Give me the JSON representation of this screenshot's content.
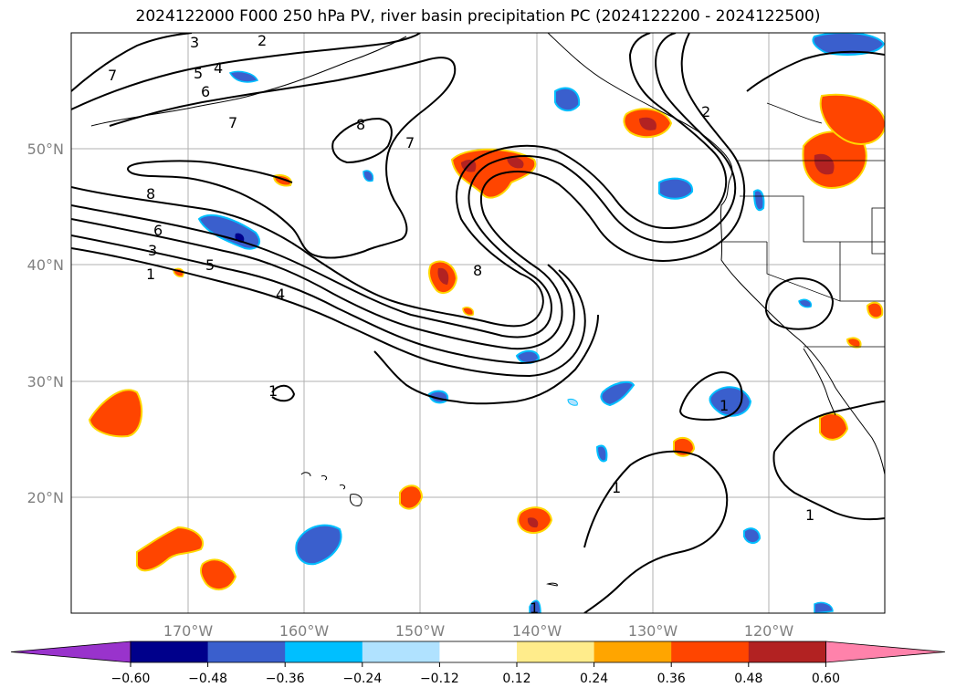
{
  "title": "2024122000 F000 250 hPa PV, river basin precipitation PC (2024122200 - 2024122500)",
  "map": {
    "lon_range": [
      -180,
      -110
    ],
    "lat_range": [
      10,
      60
    ],
    "lat_labels": [
      "20°N",
      "30°N",
      "40°N",
      "50°N"
    ],
    "lon_labels": [
      "170°W",
      "160°W",
      "150°W",
      "140°W",
      "130°W",
      "120°W"
    ],
    "gridlines": true
  },
  "colorbar": {
    "colors": [
      "#9933cc",
      "#00008b",
      "#3a5fcd",
      "#00bfff",
      "#b0e2ff",
      "#ffffff",
      "#ffec8b",
      "#ffa500",
      "#ff4500",
      "#b22222",
      "#ff82ab"
    ],
    "ticks": [
      "−0.60",
      "−0.48",
      "−0.36",
      "−0.24",
      "−0.12",
      "0.12",
      "0.24",
      "0.36",
      "0.48",
      "0.60"
    ],
    "extend": "both"
  },
  "contour_labels": [
    "3",
    "2",
    "7",
    "4",
    "5",
    "6",
    "7",
    "8",
    "7",
    "2",
    "8",
    "6",
    "3",
    "5",
    "1",
    "4",
    "8",
    "1",
    "1",
    "1",
    "1",
    "1"
  ]
}
